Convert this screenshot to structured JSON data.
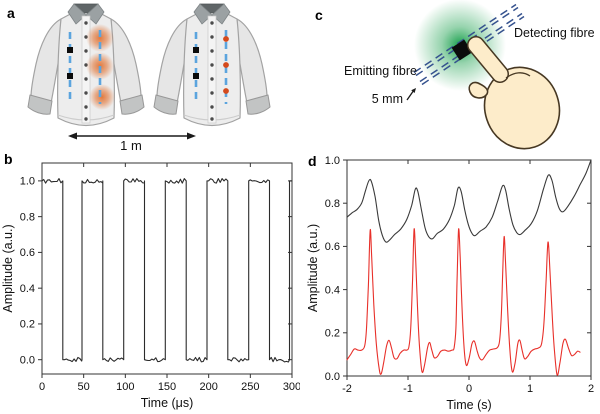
{
  "panels": {
    "a": {
      "label": "a",
      "distance_label": "1 m"
    },
    "b": {
      "label": "b"
    },
    "c": {
      "label": "c",
      "detecting_label": "Detecting fibre",
      "emitting_label": "Emitting fibre",
      "spacing_label": "5 mm"
    },
    "d": {
      "label": "d"
    }
  },
  "colors": {
    "fiber_blue": "#5ba4de",
    "fibre_navy": "#35528e",
    "glow_orange": "#df6e30",
    "dot_orange": "#d44a1d",
    "glow_green": "#0e9c44",
    "skin": "#fdecca",
    "skin_outline": "#473823",
    "red_line": "#e8302a",
    "black_line": "#333333"
  },
  "chart_data": [
    {
      "panel": "b",
      "type": "line",
      "title": "",
      "xlabel": "Time (μs)",
      "ylabel": "Amplitude (a.u.)",
      "xlim": [
        0,
        300
      ],
      "ylim": [
        -0.08,
        1.1
      ],
      "xticks": [
        0,
        50,
        100,
        150,
        200,
        250,
        300
      ],
      "xtick_labels": [
        "0",
        "50",
        "100",
        "150",
        "200",
        "250",
        "300"
      ],
      "yticks": [
        0,
        0.2,
        0.4,
        0.6,
        0.8,
        1.0
      ],
      "ytick_labels": [
        "0.0",
        "0.2",
        "0.4",
        "0.6",
        "0.8",
        "1.0"
      ],
      "grid": false,
      "legend": "none",
      "series": [
        {
          "name": "square-wave-modulation",
          "color": "#2b2b2b",
          "style": "step",
          "noise_amplitude": 0.013,
          "points": [
            [
              0,
              1
            ],
            [
              25,
              1
            ],
            [
              25,
              0
            ],
            [
              48,
              0
            ],
            [
              48,
              1
            ],
            [
              73,
              1
            ],
            [
              73,
              0
            ],
            [
              98,
              0
            ],
            [
              98,
              1
            ],
            [
              123,
              1
            ],
            [
              123,
              0
            ],
            [
              148,
              0
            ],
            [
              148,
              1
            ],
            [
              173,
              1
            ],
            [
              173,
              0
            ],
            [
              198,
              0
            ],
            [
              198,
              1
            ],
            [
              223,
              1
            ],
            [
              223,
              0
            ],
            [
              248,
              0
            ],
            [
              248,
              1
            ],
            [
              273,
              1
            ],
            [
              273,
              0
            ],
            [
              297,
              0
            ],
            [
              297,
              1
            ],
            [
              300,
              1
            ]
          ]
        }
      ]
    },
    {
      "panel": "d",
      "type": "line",
      "title": "",
      "xlabel": "Time (s)",
      "ylabel": "Amplitude (a.u.)",
      "xlim": [
        -2,
        2
      ],
      "ylim": [
        0,
        1
      ],
      "xticks": [
        -2,
        -1,
        0,
        1,
        2
      ],
      "xtick_labels": [
        "-2",
        "-1",
        "0",
        "1",
        "2"
      ],
      "yticks": [
        0,
        0.2,
        0.4,
        0.6,
        0.8,
        1.0
      ],
      "ytick_labels": [
        "0.0",
        "0.2",
        "0.4",
        "0.6",
        "0.8",
        "1.0"
      ],
      "grid": false,
      "legend": "none",
      "series": [
        {
          "name": "respiration-signal-black",
          "color": "#3a3a3a",
          "style": "smooth",
          "points": [
            [
              -2,
              0.735
            ],
            [
              -1.92,
              0.755
            ],
            [
              -1.84,
              0.77
            ],
            [
              -1.76,
              0.8
            ],
            [
              -1.7,
              0.855
            ],
            [
              -1.64,
              0.905
            ],
            [
              -1.6,
              0.9
            ],
            [
              -1.54,
              0.83
            ],
            [
              -1.48,
              0.72
            ],
            [
              -1.42,
              0.65
            ],
            [
              -1.36,
              0.62
            ],
            [
              -1.3,
              0.63
            ],
            [
              -1.22,
              0.655
            ],
            [
              -1.12,
              0.68
            ],
            [
              -1.02,
              0.725
            ],
            [
              -0.94,
              0.79
            ],
            [
              -0.88,
              0.865
            ],
            [
              -0.84,
              0.855
            ],
            [
              -0.78,
              0.77
            ],
            [
              -0.72,
              0.685
            ],
            [
              -0.66,
              0.645
            ],
            [
              -0.6,
              0.635
            ],
            [
              -0.52,
              0.66
            ],
            [
              -0.42,
              0.68
            ],
            [
              -0.32,
              0.725
            ],
            [
              -0.24,
              0.79
            ],
            [
              -0.18,
              0.87
            ],
            [
              -0.13,
              0.855
            ],
            [
              -0.07,
              0.77
            ],
            [
              -0.01,
              0.7
            ],
            [
              0.05,
              0.66
            ],
            [
              0.1,
              0.65
            ],
            [
              0.18,
              0.67
            ],
            [
              0.28,
              0.69
            ],
            [
              0.38,
              0.735
            ],
            [
              0.47,
              0.81
            ],
            [
              0.55,
              0.88
            ],
            [
              0.6,
              0.86
            ],
            [
              0.66,
              0.77
            ],
            [
              0.72,
              0.7
            ],
            [
              0.78,
              0.665
            ],
            [
              0.84,
              0.655
            ],
            [
              0.92,
              0.675
            ],
            [
              1.02,
              0.705
            ],
            [
              1.12,
              0.765
            ],
            [
              1.22,
              0.865
            ],
            [
              1.3,
              0.93
            ],
            [
              1.36,
              0.905
            ],
            [
              1.42,
              0.83
            ],
            [
              1.48,
              0.775
            ],
            [
              1.54,
              0.76
            ],
            [
              1.62,
              0.785
            ],
            [
              1.72,
              0.83
            ],
            [
              1.82,
              0.885
            ],
            [
              1.92,
              0.94
            ],
            [
              2,
              1.0
            ]
          ]
        },
        {
          "name": "pulse-signal-red",
          "color": "#e8302a",
          "style": "smooth",
          "points": [
            [
              -2,
              0.075
            ],
            [
              -1.94,
              0.1
            ],
            [
              -1.88,
              0.125
            ],
            [
              -1.82,
              0.12
            ],
            [
              -1.76,
              0.12
            ],
            [
              -1.71,
              0.14
            ],
            [
              -1.68,
              0.22
            ],
            [
              -1.65,
              0.42
            ],
            [
              -1.62,
              0.675
            ],
            [
              -1.595,
              0.55
            ],
            [
              -1.56,
              0.33
            ],
            [
              -1.52,
              0.15
            ],
            [
              -1.47,
              0.03
            ],
            [
              -1.44,
              0.01
            ],
            [
              -1.4,
              0.06
            ],
            [
              -1.35,
              0.14
            ],
            [
              -1.31,
              0.165
            ],
            [
              -1.27,
              0.13
            ],
            [
              -1.23,
              0.085
            ],
            [
              -1.18,
              0.08
            ],
            [
              -1.13,
              0.105
            ],
            [
              -1.07,
              0.12
            ],
            [
              -1.02,
              0.12
            ],
            [
              -0.985,
              0.135
            ],
            [
              -0.955,
              0.22
            ],
            [
              -0.925,
              0.45
            ],
            [
              -0.9,
              0.68
            ],
            [
              -0.875,
              0.55
            ],
            [
              -0.845,
              0.32
            ],
            [
              -0.81,
              0.13
            ],
            [
              -0.77,
              0.02
            ],
            [
              -0.73,
              0.05
            ],
            [
              -0.68,
              0.13
            ],
            [
              -0.645,
              0.155
            ],
            [
              -0.61,
              0.12
            ],
            [
              -0.57,
              0.085
            ],
            [
              -0.52,
              0.09
            ],
            [
              -0.46,
              0.115
            ],
            [
              -0.4,
              0.12
            ],
            [
              -0.34,
              0.115
            ],
            [
              -0.28,
              0.12
            ],
            [
              -0.245,
              0.13
            ],
            [
              -0.215,
              0.22
            ],
            [
              -0.195,
              0.45
            ],
            [
              -0.17,
              0.68
            ],
            [
              -0.145,
              0.55
            ],
            [
              -0.115,
              0.32
            ],
            [
              -0.08,
              0.13
            ],
            [
              -0.045,
              0.05
            ],
            [
              0,
              0.08
            ],
            [
              0.05,
              0.15
            ],
            [
              0.09,
              0.16
            ],
            [
              0.13,
              0.12
            ],
            [
              0.17,
              0.085
            ],
            [
              0.22,
              0.075
            ],
            [
              0.28,
              0.1
            ],
            [
              0.34,
              0.12
            ],
            [
              0.4,
              0.125
            ],
            [
              0.46,
              0.13
            ],
            [
              0.5,
              0.16
            ],
            [
              0.53,
              0.28
            ],
            [
              0.55,
              0.45
            ],
            [
              0.575,
              0.645
            ],
            [
              0.6,
              0.52
            ],
            [
              0.635,
              0.3
            ],
            [
              0.67,
              0.12
            ],
            [
              0.71,
              0.02
            ],
            [
              0.755,
              0.06
            ],
            [
              0.8,
              0.15
            ],
            [
              0.835,
              0.165
            ],
            [
              0.87,
              0.12
            ],
            [
              0.91,
              0.08
            ],
            [
              0.96,
              0.09
            ],
            [
              1.02,
              0.115
            ],
            [
              1.08,
              0.125
            ],
            [
              1.14,
              0.13
            ],
            [
              1.19,
              0.15
            ],
            [
              1.23,
              0.25
            ],
            [
              1.265,
              0.45
            ],
            [
              1.295,
              0.62
            ],
            [
              1.325,
              0.5
            ],
            [
              1.36,
              0.3
            ],
            [
              1.4,
              0.12
            ],
            [
              1.445,
              0.005
            ],
            [
              1.49,
              0.06
            ],
            [
              1.54,
              0.15
            ],
            [
              1.58,
              0.17
            ],
            [
              1.63,
              0.13
            ],
            [
              1.68,
              0.095
            ],
            [
              1.73,
              0.1
            ],
            [
              1.78,
              0.115
            ],
            [
              1.82,
              0.11
            ]
          ]
        }
      ]
    }
  ]
}
